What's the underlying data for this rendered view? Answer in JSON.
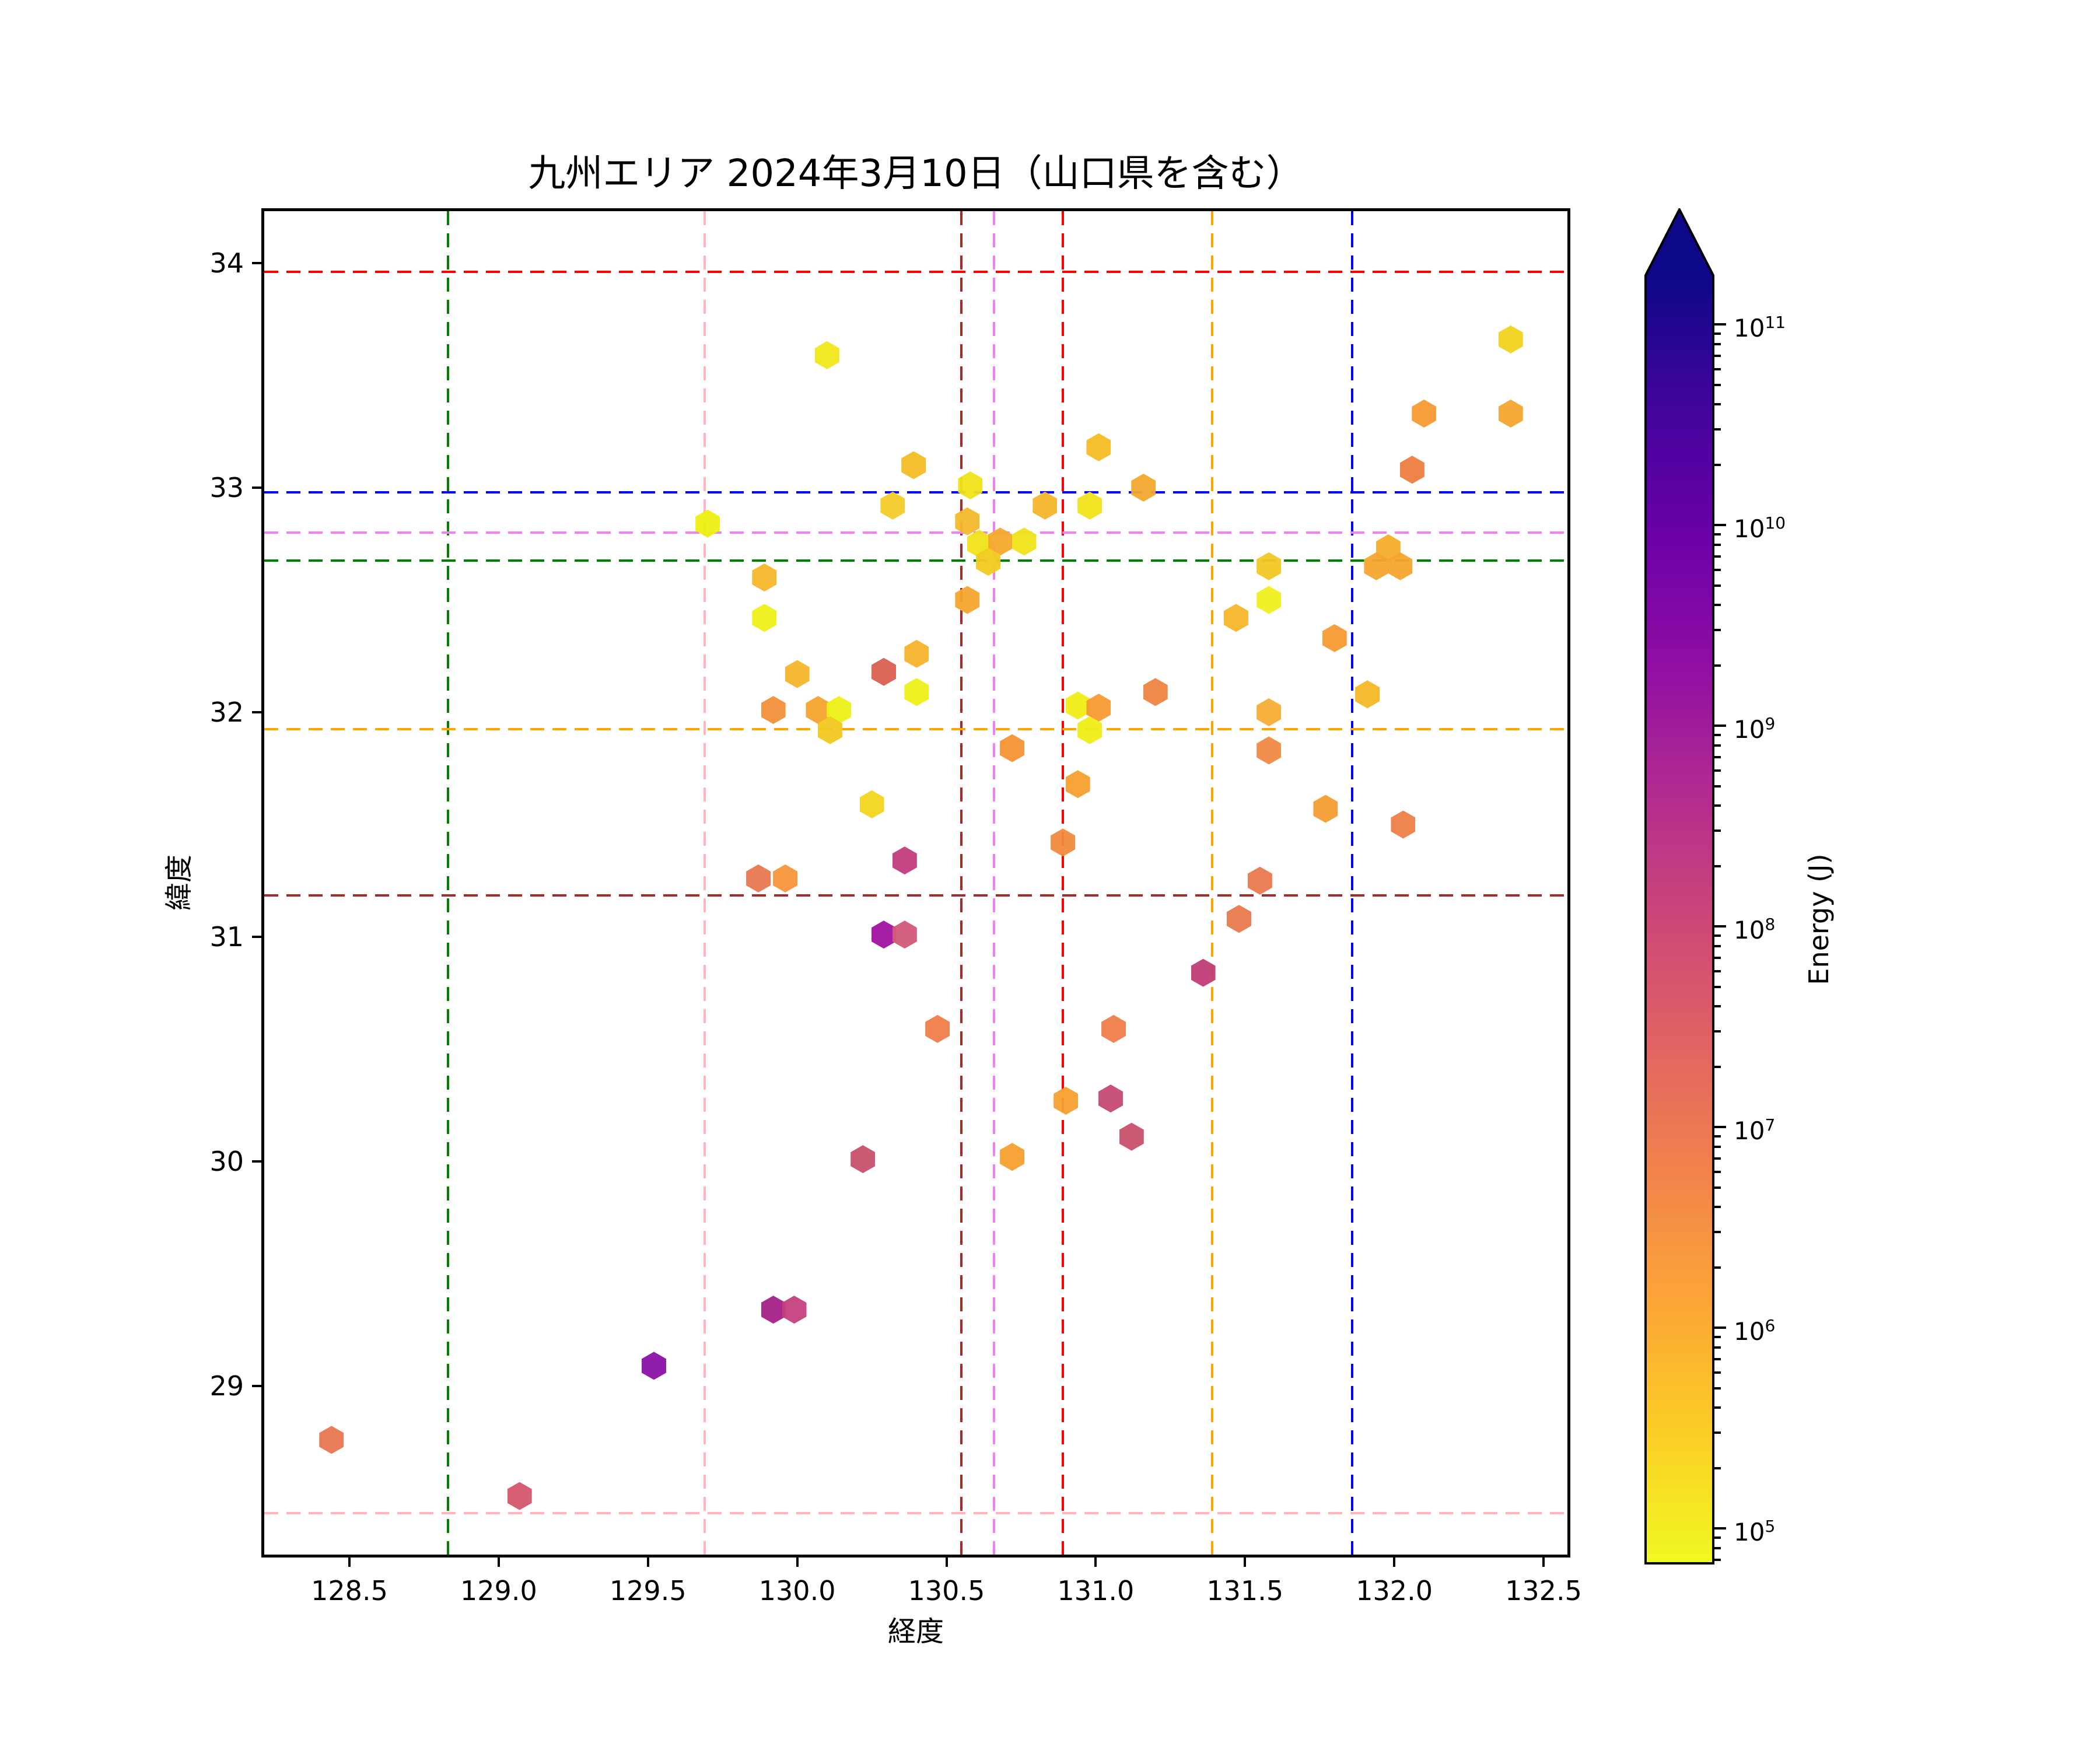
{
  "title": "九州エリア 2024年3月10日（山口県を含む）",
  "chart_data": {
    "type": "scatter",
    "marker": "hexagon",
    "title": "九州エリア 2024年3月10日（山口県を含む）",
    "xlabel": "経度",
    "ylabel": "緯度",
    "xlim": [
      128.2,
      132.59
    ],
    "ylim": [
      28.32,
      34.24
    ],
    "grid": false,
    "x_ticks": [
      128.5,
      129.0,
      129.5,
      130.0,
      130.5,
      131.0,
      131.5,
      132.0,
      132.5
    ],
    "x_tick_labels": [
      "128.5",
      "129.0",
      "129.5",
      "130.0",
      "130.5",
      "131.0",
      "131.5",
      "132.0",
      "132.5"
    ],
    "y_ticks": [
      34,
      33,
      32,
      31,
      30,
      29
    ],
    "y_tick_labels": [
      "34",
      "33",
      "32",
      "31",
      "30",
      "29"
    ],
    "reference_lines": {
      "vertical": [
        {
          "lon": 128.83,
          "color": "#008000"
        },
        {
          "lon": 129.69,
          "color": "#ffb6c1"
        },
        {
          "lon": 130.55,
          "color": "#a52a2a"
        },
        {
          "lon": 130.66,
          "color": "#ee82ee"
        },
        {
          "lon": 130.89,
          "color": "#ff0000"
        },
        {
          "lon": 131.39,
          "color": "#ffa500"
        },
        {
          "lon": 131.86,
          "color": "#0000ff"
        }
      ],
      "horizontal": [
        {
          "lat": 33.96,
          "color": "#ff0000"
        },
        {
          "lat": 32.98,
          "color": "#0000ff"
        },
        {
          "lat": 32.8,
          "color": "#ee82ee"
        },
        {
          "lat": 32.675,
          "color": "#008000"
        },
        {
          "lat": 31.925,
          "color": "#ffa500"
        },
        {
          "lat": 31.185,
          "color": "#a52a2a"
        },
        {
          "lat": 28.435,
          "color": "#ffb6c1"
        }
      ]
    },
    "colorbar": {
      "label": "Energy (J)",
      "scale": "log",
      "colormap": "plasma_r",
      "extend": "max",
      "tick_exponents": [
        11,
        10,
        9,
        8,
        7,
        6,
        5
      ],
      "range_exponents": [
        4.83,
        11.24
      ]
    },
    "points": [
      {
        "lon": 128.44,
        "lat": 28.76,
        "energy_j": 4000000.0,
        "color": "#e8764f"
      },
      {
        "lon": 129.07,
        "lat": 28.51,
        "energy_j": 25000000.0,
        "color": "#d4566c"
      },
      {
        "lon": 129.52,
        "lat": 29.09,
        "energy_j": 800000000.0,
        "color": "#8a12a5"
      },
      {
        "lon": 129.92,
        "lat": 29.34,
        "energy_j": 300000000.0,
        "color": "#a32087"
      },
      {
        "lon": 129.99,
        "lat": 29.34,
        "energy_j": 60000000.0,
        "color": "#c54080"
      },
      {
        "lon": 129.7,
        "lat": 32.84,
        "energy_j": 100000.0,
        "color": "#edf011"
      },
      {
        "lon": 129.89,
        "lat": 32.6,
        "energy_j": 500000.0,
        "color": "#f5b62a"
      },
      {
        "lon": 129.89,
        "lat": 32.42,
        "energy_j": 100000.0,
        "color": "#eef016"
      },
      {
        "lon": 130.0,
        "lat": 32.17,
        "energy_j": 500000.0,
        "color": "#f5b52a"
      },
      {
        "lon": 130.29,
        "lat": 32.18,
        "energy_j": 15000000.0,
        "color": "#d96050"
      },
      {
        "lon": 130.4,
        "lat": 32.26,
        "energy_j": 550000.0,
        "color": "#f5b32b"
      },
      {
        "lon": 130.4,
        "lat": 32.09,
        "energy_j": 100000.0,
        "color": "#eef016"
      },
      {
        "lon": 129.92,
        "lat": 32.01,
        "energy_j": 1500000.0,
        "color": "#f2903a"
      },
      {
        "lon": 130.07,
        "lat": 32.01,
        "energy_j": 800000.0,
        "color": "#f5a42e"
      },
      {
        "lon": 130.14,
        "lat": 32.01,
        "energy_j": 100000.0,
        "color": "#edf016"
      },
      {
        "lon": 130.11,
        "lat": 31.92,
        "energy_j": 400000.0,
        "color": "#f2c822"
      },
      {
        "lon": 130.25,
        "lat": 31.59,
        "energy_j": 300000.0,
        "color": "#f2d61e"
      },
      {
        "lon": 130.1,
        "lat": 33.59,
        "energy_j": 150000.0,
        "color": "#f0e81a"
      },
      {
        "lon": 130.39,
        "lat": 33.1,
        "energy_j": 450000.0,
        "color": "#f4bc25"
      },
      {
        "lon": 131.01,
        "lat": 33.18,
        "energy_j": 450000.0,
        "color": "#f4bc25"
      },
      {
        "lon": 130.58,
        "lat": 33.01,
        "energy_j": 150000.0,
        "color": "#f0e318"
      },
      {
        "lon": 131.16,
        "lat": 33.0,
        "energy_j": 700000.0,
        "color": "#f3a930"
      },
      {
        "lon": 130.32,
        "lat": 32.92,
        "energy_j": 400000.0,
        "color": "#f3cb27"
      },
      {
        "lon": 130.83,
        "lat": 32.92,
        "energy_j": 500000.0,
        "color": "#f4b62a"
      },
      {
        "lon": 130.98,
        "lat": 32.92,
        "energy_j": 150000.0,
        "color": "#f0e318"
      },
      {
        "lon": 130.57,
        "lat": 32.85,
        "energy_j": 500000.0,
        "color": "#f4b92a"
      },
      {
        "lon": 130.61,
        "lat": 32.75,
        "energy_j": 150000.0,
        "color": "#f0e318"
      },
      {
        "lon": 130.68,
        "lat": 32.76,
        "energy_j": 700000.0,
        "color": "#f5a92c"
      },
      {
        "lon": 130.76,
        "lat": 32.76,
        "energy_j": 150000.0,
        "color": "#f0e318"
      },
      {
        "lon": 130.64,
        "lat": 32.67,
        "energy_j": 400000.0,
        "color": "#f2cb20"
      },
      {
        "lon": 130.57,
        "lat": 32.5,
        "energy_j": 800000.0,
        "color": "#f5a52e"
      },
      {
        "lon": 131.58,
        "lat": 32.65,
        "energy_j": 400000.0,
        "color": "#f2c824"
      },
      {
        "lon": 131.58,
        "lat": 32.5,
        "energy_j": 100000.0,
        "color": "#eff01e"
      },
      {
        "lon": 131.47,
        "lat": 32.42,
        "energy_j": 500000.0,
        "color": "#f5b62a"
      },
      {
        "lon": 131.8,
        "lat": 32.33,
        "energy_j": 1000000.0,
        "color": "#f59a32"
      },
      {
        "lon": 132.39,
        "lat": 33.66,
        "energy_j": 300000.0,
        "color": "#f2d31f"
      },
      {
        "lon": 132.1,
        "lat": 33.33,
        "energy_j": 1000000.0,
        "color": "#f59a32"
      },
      {
        "lon": 132.39,
        "lat": 33.33,
        "energy_j": 800000.0,
        "color": "#f5a52e"
      },
      {
        "lon": 132.06,
        "lat": 33.08,
        "energy_j": 4000000.0,
        "color": "#ed7d3f"
      },
      {
        "lon": 131.98,
        "lat": 32.73,
        "energy_j": 600000.0,
        "color": "#f5ad2c"
      },
      {
        "lon": 131.94,
        "lat": 32.65,
        "energy_j": 800000.0,
        "color": "#f5a52e"
      },
      {
        "lon": 132.02,
        "lat": 32.65,
        "energy_j": 800000.0,
        "color": "#f5a52e"
      },
      {
        "lon": 130.94,
        "lat": 32.03,
        "energy_j": 100000.0,
        "color": "#f0ed16"
      },
      {
        "lon": 131.01,
        "lat": 32.02,
        "energy_j": 1000000.0,
        "color": "#f59a32"
      },
      {
        "lon": 130.98,
        "lat": 31.92,
        "energy_j": 100000.0,
        "color": "#f0ed16"
      },
      {
        "lon": 131.2,
        "lat": 32.09,
        "energy_j": 3000000.0,
        "color": "#ee8440"
      },
      {
        "lon": 130.72,
        "lat": 31.84,
        "energy_j": 1200000.0,
        "color": "#f59434"
      },
      {
        "lon": 130.94,
        "lat": 31.68,
        "energy_j": 900000.0,
        "color": "#f5a030"
      },
      {
        "lon": 131.58,
        "lat": 32.0,
        "energy_j": 600000.0,
        "color": "#f5ad35"
      },
      {
        "lon": 131.91,
        "lat": 32.08,
        "energy_j": 500000.0,
        "color": "#f4b827"
      },
      {
        "lon": 131.58,
        "lat": 31.83,
        "energy_j": 2500000.0,
        "color": "#ef8a42"
      },
      {
        "lon": 131.77,
        "lat": 31.57,
        "energy_j": 1000000.0,
        "color": "#f59d31"
      },
      {
        "lon": 132.03,
        "lat": 31.5,
        "energy_j": 4000000.0,
        "color": "#ec7f48"
      },
      {
        "lon": 131.55,
        "lat": 31.25,
        "energy_j": 5000000.0,
        "color": "#e97a4d"
      },
      {
        "lon": 131.48,
        "lat": 31.08,
        "energy_j": 5000000.0,
        "color": "#e97a4d"
      },
      {
        "lon": 131.36,
        "lat": 30.84,
        "energy_j": 80000000.0,
        "color": "#c13c78"
      },
      {
        "lon": 130.36,
        "lat": 31.34,
        "energy_j": 80000000.0,
        "color": "#c13c7e"
      },
      {
        "lon": 129.87,
        "lat": 31.26,
        "energy_j": 4500000.0,
        "color": "#e8774f"
      },
      {
        "lon": 129.96,
        "lat": 31.26,
        "energy_j": 1200000.0,
        "color": "#f5953a"
      },
      {
        "lon": 130.29,
        "lat": 31.01,
        "energy_j": 400000000.0,
        "color": "#a112a0"
      },
      {
        "lon": 130.36,
        "lat": 31.01,
        "energy_j": 20000000.0,
        "color": "#d25a77"
      },
      {
        "lon": 130.89,
        "lat": 31.42,
        "energy_j": 2500000.0,
        "color": "#f08a3c"
      },
      {
        "lon": 130.47,
        "lat": 30.59,
        "energy_j": 4000000.0,
        "color": "#ef7e4a"
      },
      {
        "lon": 131.06,
        "lat": 30.59,
        "energy_j": 4000000.0,
        "color": "#ef7e4a"
      },
      {
        "lon": 130.9,
        "lat": 30.27,
        "energy_j": 900000.0,
        "color": "#f5a030"
      },
      {
        "lon": 131.05,
        "lat": 30.28,
        "energy_j": 50000000.0,
        "color": "#c44a72"
      },
      {
        "lon": 131.12,
        "lat": 30.11,
        "energy_j": 40000000.0,
        "color": "#c9506c"
      },
      {
        "lon": 130.72,
        "lat": 30.02,
        "energy_j": 900000.0,
        "color": "#f5a030"
      },
      {
        "lon": 130.22,
        "lat": 30.01,
        "energy_j": 40000000.0,
        "color": "#c9506c"
      }
    ]
  }
}
